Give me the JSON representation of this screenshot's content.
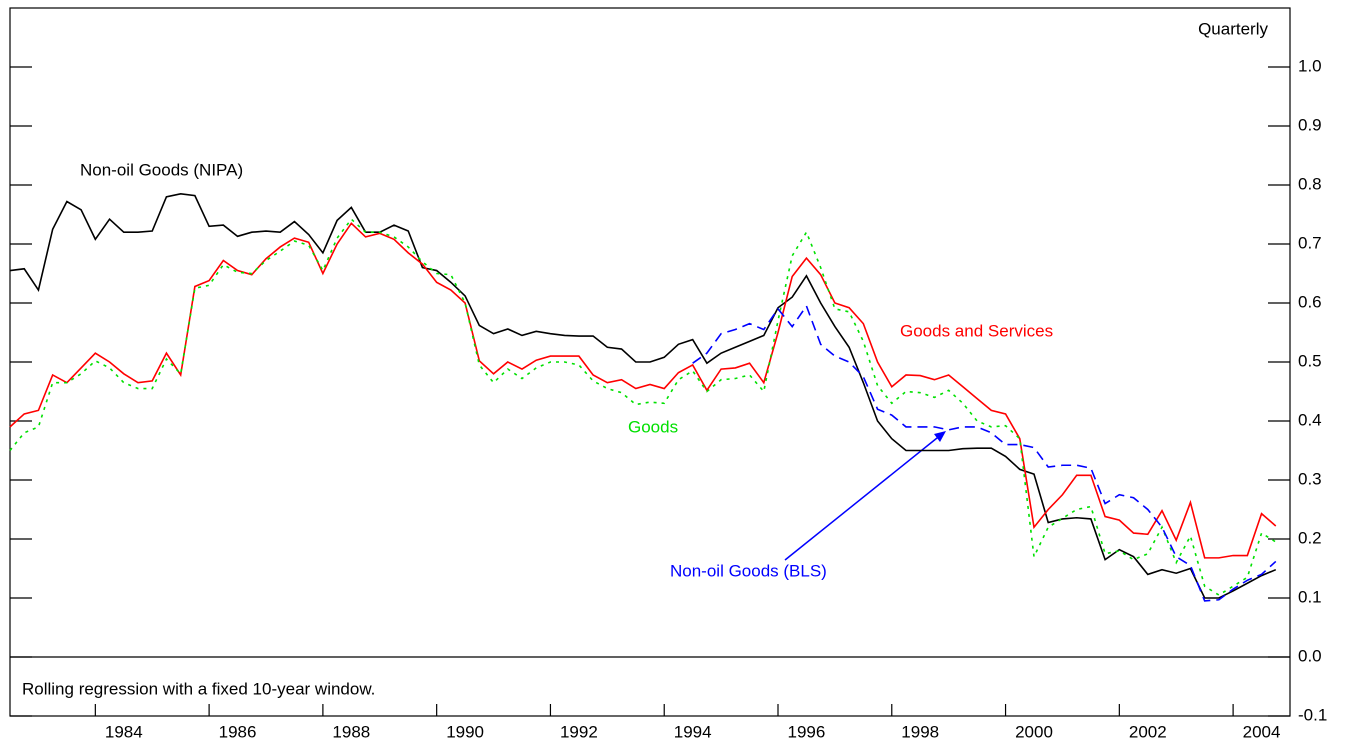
{
  "chart_data": {
    "type": "line",
    "corner_label": "Quarterly",
    "note": "Rolling regression with a fixed 10-year window.",
    "xlim": [
      1982.5,
      2005
    ],
    "xticks": [
      1984,
      1986,
      1988,
      1990,
      1992,
      1994,
      1996,
      1998,
      2000,
      2002,
      2004
    ],
    "ylim": [
      -0.1,
      1.1
    ],
    "yticks": [
      -0.1,
      {
        "value": 0.0,
        "label": "0.0"
      },
      0.1,
      0.2,
      0.3,
      0.4,
      0.5,
      0.6,
      0.7,
      0.8,
      0.9,
      {
        "value": 1.0,
        "label": "1.0"
      }
    ],
    "x": [
      1982.5,
      1982.75,
      1983,
      1983.25,
      1983.5,
      1983.75,
      1984,
      1984.25,
      1984.5,
      1984.75,
      1985,
      1985.25,
      1985.5,
      1985.75,
      1986,
      1986.25,
      1986.5,
      1986.75,
      1987,
      1987.25,
      1987.5,
      1987.75,
      1988,
      1988.25,
      1988.5,
      1988.75,
      1989,
      1989.25,
      1989.5,
      1989.75,
      1990,
      1990.25,
      1990.5,
      1990.75,
      1991,
      1991.25,
      1991.5,
      1991.75,
      1992,
      1992.25,
      1992.5,
      1992.75,
      1993,
      1993.25,
      1993.5,
      1993.75,
      1994,
      1994.25,
      1994.5,
      1994.75,
      1995,
      1995.25,
      1995.5,
      1995.75,
      1996,
      1996.25,
      1996.5,
      1996.75,
      1997,
      1997.25,
      1997.5,
      1997.75,
      1998,
      1998.25,
      1998.5,
      1998.75,
      1999,
      1999.25,
      1999.5,
      1999.75,
      2000,
      2000.25,
      2000.5,
      2000.75,
      2001,
      2001.25,
      2001.5,
      2001.75,
      2002,
      2002.25,
      2002.5,
      2002.75,
      2003,
      2003.25,
      2003.5,
      2003.75,
      2004,
      2004.25,
      2004.5,
      2004.75
    ],
    "series": [
      {
        "name": "Non-oil Goods (NIPA)",
        "color": "#000000",
        "dash": "solid",
        "values": [
          0.655,
          0.658,
          0.622,
          0.725,
          0.772,
          0.758,
          0.708,
          0.742,
          0.72,
          0.72,
          0.722,
          0.78,
          0.785,
          0.782,
          0.73,
          0.732,
          0.713,
          0.72,
          0.722,
          0.72,
          0.738,
          0.716,
          0.685,
          0.74,
          0.762,
          0.72,
          0.72,
          0.732,
          0.722,
          0.66,
          0.655,
          0.635,
          0.612,
          0.562,
          0.548,
          0.556,
          0.545,
          0.552,
          0.548,
          0.545,
          0.544,
          0.544,
          0.525,
          0.522,
          0.5,
          0.5,
          0.508,
          0.53,
          0.538,
          0.498,
          0.515,
          0.525,
          0.535,
          0.545,
          0.592,
          0.61,
          0.646,
          0.6,
          0.56,
          0.525,
          0.465,
          0.4,
          0.37,
          0.35,
          0.35,
          0.35,
          0.35,
          0.353,
          0.354,
          0.354,
          0.34,
          0.318,
          0.31,
          0.228,
          0.234,
          0.236,
          0.234,
          0.165,
          0.182,
          0.17,
          0.14,
          0.148,
          0.142,
          0.15,
          0.1,
          0.1,
          0.112,
          0.125,
          0.138,
          0.148
        ]
      },
      {
        "name": "Goods and Services",
        "color": "#ff0000",
        "dash": "solid",
        "values": [
          0.39,
          0.412,
          0.418,
          0.478,
          0.465,
          0.49,
          0.515,
          0.5,
          0.48,
          0.465,
          0.468,
          0.515,
          0.478,
          0.628,
          0.638,
          0.672,
          0.655,
          0.648,
          0.675,
          0.695,
          0.71,
          0.703,
          0.65,
          0.7,
          0.735,
          0.712,
          0.718,
          0.708,
          0.685,
          0.666,
          0.635,
          0.622,
          0.6,
          0.502,
          0.48,
          0.5,
          0.488,
          0.503,
          0.51,
          0.51,
          0.51,
          0.478,
          0.465,
          0.47,
          0.455,
          0.462,
          0.455,
          0.482,
          0.495,
          0.452,
          0.488,
          0.49,
          0.498,
          0.465,
          0.55,
          0.645,
          0.676,
          0.648,
          0.6,
          0.592,
          0.565,
          0.5,
          0.458,
          0.478,
          0.477,
          0.47,
          0.478,
          0.458,
          0.438,
          0.418,
          0.412,
          0.37,
          0.22,
          0.25,
          0.275,
          0.308,
          0.308,
          0.238,
          0.232,
          0.21,
          0.208,
          0.248,
          0.198,
          0.262,
          0.168,
          0.168,
          0.172,
          0.172,
          0.243,
          0.222
        ]
      },
      {
        "name": "Goods",
        "color": "#00e000",
        "dash": "dotted",
        "values": [
          0.35,
          0.38,
          0.39,
          0.465,
          0.465,
          0.48,
          0.502,
          0.49,
          0.465,
          0.455,
          0.455,
          0.505,
          0.48,
          0.625,
          0.63,
          0.665,
          0.652,
          0.65,
          0.672,
          0.688,
          0.705,
          0.698,
          0.655,
          0.71,
          0.742,
          0.72,
          0.72,
          0.712,
          0.695,
          0.67,
          0.65,
          0.648,
          0.6,
          0.495,
          0.465,
          0.488,
          0.472,
          0.49,
          0.5,
          0.5,
          0.495,
          0.468,
          0.455,
          0.448,
          0.428,
          0.432,
          0.43,
          0.47,
          0.485,
          0.45,
          0.47,
          0.472,
          0.478,
          0.45,
          0.57,
          0.68,
          0.72,
          0.66,
          0.59,
          0.585,
          0.535,
          0.46,
          0.43,
          0.45,
          0.448,
          0.44,
          0.452,
          0.43,
          0.4,
          0.39,
          0.392,
          0.37,
          0.17,
          0.22,
          0.235,
          0.25,
          0.255,
          0.175,
          0.18,
          0.165,
          0.175,
          0.22,
          0.16,
          0.205,
          0.12,
          0.105,
          0.12,
          0.135,
          0.21,
          0.195
        ]
      },
      {
        "name": "Non-oil Goods (BLS)",
        "color": "#0000ff",
        "dash": "dashed",
        "values": [
          null,
          null,
          null,
          null,
          null,
          null,
          null,
          null,
          null,
          null,
          null,
          null,
          null,
          null,
          null,
          null,
          null,
          null,
          null,
          null,
          null,
          null,
          null,
          null,
          null,
          null,
          null,
          null,
          null,
          null,
          null,
          null,
          null,
          null,
          null,
          null,
          null,
          null,
          null,
          null,
          null,
          null,
          null,
          null,
          null,
          null,
          null,
          null,
          0.498,
          0.515,
          0.548,
          0.555,
          0.565,
          0.555,
          0.59,
          0.56,
          0.595,
          0.53,
          0.51,
          0.5,
          0.475,
          0.42,
          0.41,
          0.39,
          0.39,
          0.39,
          0.385,
          0.39,
          0.39,
          0.38,
          0.36,
          0.36,
          0.355,
          0.322,
          0.325,
          0.325,
          0.32,
          0.26,
          0.275,
          0.27,
          0.25,
          0.22,
          0.17,
          0.155,
          0.095,
          0.097,
          0.115,
          0.13,
          0.14,
          0.162
        ]
      }
    ]
  }
}
